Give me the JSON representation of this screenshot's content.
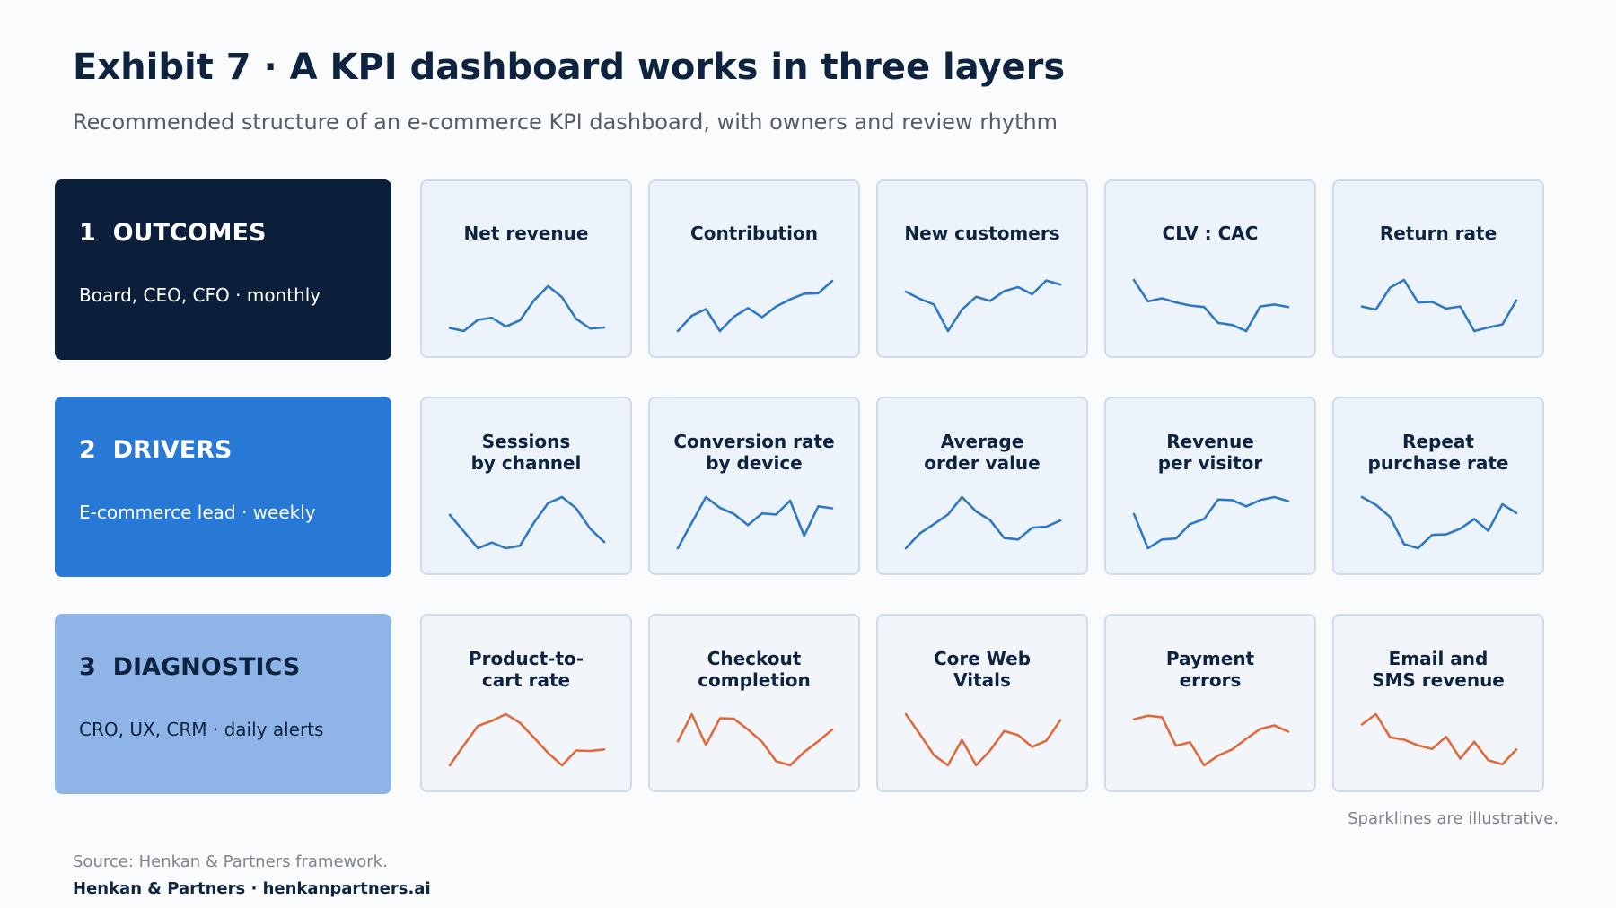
{
  "header": {
    "title": "Exhibit 7 · A KPI dashboard works in three layers",
    "subtitle": "Recommended structure of an e-commerce KPI dashboard, with owners and review rhythm"
  },
  "colors": {
    "navy": "#0b1f3a",
    "blue": "#2878d6",
    "light_blue": "#8fb4e8",
    "spark_blue": "#2f78c4",
    "spark_orange": "#e06a3c"
  },
  "layers": [
    {
      "name": "1  OUTCOMES",
      "owner": "Board, CEO, CFO · monthly",
      "metrics": [
        {
          "title1": "Net revenue",
          "title2": "",
          "spark": [
            0.06,
            0.0,
            0.22,
            0.26,
            0.09,
            0.21,
            0.6,
            0.88,
            0.66,
            0.24,
            0.05,
            0.07
          ]
        },
        {
          "title1": "Contribution",
          "title2": "",
          "spark": [
            0.0,
            0.3,
            0.43,
            0.0,
            0.28,
            0.45,
            0.27,
            0.48,
            0.62,
            0.73,
            0.74,
            0.98
          ]
        },
        {
          "title1": "New customers",
          "title2": "",
          "spark": [
            0.77,
            0.63,
            0.52,
            0.0,
            0.42,
            0.67,
            0.59,
            0.78,
            0.86,
            0.72,
            0.99,
            0.91
          ]
        },
        {
          "title1": "CLV : CAC",
          "title2": "",
          "spark": [
            1.0,
            0.58,
            0.64,
            0.56,
            0.5,
            0.47,
            0.16,
            0.12,
            0.0,
            0.48,
            0.52,
            0.47
          ]
        },
        {
          "title1": "Return rate",
          "title2": "",
          "spark": [
            0.48,
            0.42,
            0.85,
            1.0,
            0.56,
            0.57,
            0.44,
            0.48,
            0.0,
            0.07,
            0.13,
            0.6
          ]
        }
      ]
    },
    {
      "name": "2  DRIVERS",
      "owner": "E-commerce lead · weekly",
      "metrics": [
        {
          "title1": "Sessions",
          "title2": "by channel",
          "spark": [
            0.65,
            0.33,
            0.0,
            0.11,
            0.0,
            0.05,
            0.5,
            0.88,
            1.0,
            0.78,
            0.38,
            0.12
          ]
        },
        {
          "title1": "Conversion rate",
          "title2": "by device",
          "spark": [
            0.0,
            0.5,
            1.0,
            0.79,
            0.67,
            0.45,
            0.68,
            0.66,
            0.93,
            0.24,
            0.82,
            0.78
          ]
        },
        {
          "title1": "Average",
          "title2": "order value",
          "spark": [
            0.0,
            0.29,
            0.47,
            0.66,
            1.0,
            0.72,
            0.55,
            0.2,
            0.17,
            0.4,
            0.42,
            0.54
          ]
        },
        {
          "title1": "Revenue",
          "title2": "per visitor",
          "spark": [
            0.67,
            0.0,
            0.17,
            0.19,
            0.47,
            0.57,
            0.95,
            0.94,
            0.82,
            0.94,
            1.0,
            0.92
          ]
        },
        {
          "title1": "Repeat",
          "title2": "purchase rate",
          "spark": [
            1.0,
            0.85,
            0.61,
            0.08,
            0.0,
            0.26,
            0.27,
            0.38,
            0.57,
            0.34,
            0.86,
            0.69
          ]
        }
      ]
    },
    {
      "name": "3  DIAGNOSTICS",
      "owner": "CRO, UX, CRM · daily alerts",
      "metrics": [
        {
          "title1": "Product-to-",
          "title2": "cart rate",
          "spark": [
            0.0,
            0.39,
            0.77,
            0.87,
            1.0,
            0.83,
            0.54,
            0.24,
            0.0,
            0.29,
            0.28,
            0.31
          ]
        },
        {
          "title1": "Checkout",
          "title2": "completion",
          "spark": [
            0.47,
            1.0,
            0.4,
            0.92,
            0.91,
            0.7,
            0.46,
            0.08,
            0.0,
            0.26,
            0.47,
            0.7
          ]
        },
        {
          "title1": "Core Web",
          "title2": "Vitals",
          "spark": [
            1.0,
            0.61,
            0.2,
            0.0,
            0.5,
            0.0,
            0.29,
            0.67,
            0.59,
            0.36,
            0.48,
            0.88
          ]
        },
        {
          "title1": "Payment",
          "title2": "errors",
          "spark": [
            0.9,
            0.97,
            0.94,
            0.38,
            0.45,
            0.0,
            0.19,
            0.31,
            0.52,
            0.71,
            0.78,
            0.66
          ]
        },
        {
          "title1": "Email and",
          "title2": "SMS revenue",
          "spark": [
            0.8,
            1.0,
            0.55,
            0.5,
            0.39,
            0.32,
            0.56,
            0.13,
            0.46,
            0.1,
            0.02,
            0.31
          ]
        }
      ]
    }
  ],
  "note": "Sparklines are illustrative.",
  "footer": {
    "source": "Source: Henkan & Partners framework.",
    "brand": "Henkan & Partners · henkanpartners.ai"
  }
}
